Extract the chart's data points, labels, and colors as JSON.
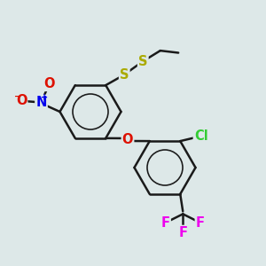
{
  "bg_color": "#dde8e8",
  "bond_color": "#1a1a1a",
  "bond_width": 1.8,
  "atom_colors": {
    "O": "#dd1100",
    "N": "#0000ee",
    "S": "#aaaa00",
    "Cl": "#33cc33",
    "F": "#ee00ee",
    "C": "#1a1a1a"
  },
  "font_size": 10.5
}
